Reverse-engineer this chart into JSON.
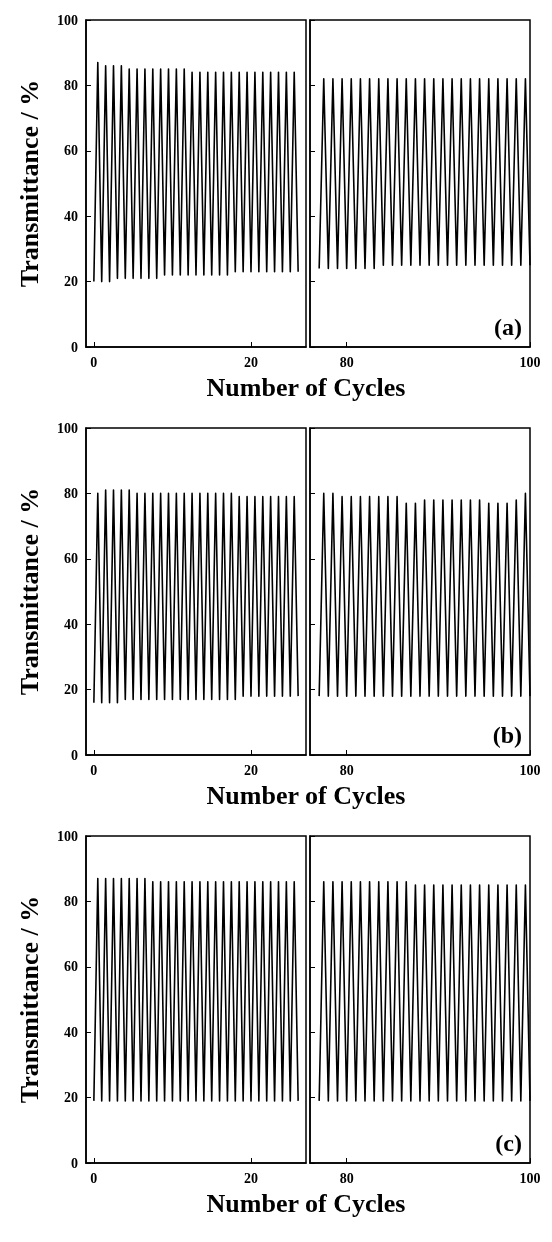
{
  "chart_data": [
    {
      "type": "line",
      "ylabel": "Transmittance / %",
      "xlabel": "Number of Cycles",
      "xlim": [
        -1,
        27
      ],
      "xticks": [
        0,
        20
      ],
      "ylim": [
        0,
        100
      ],
      "yticks": [
        0,
        20,
        40,
        60,
        80,
        100
      ],
      "grid": false,
      "marker": "none",
      "color": "#000000",
      "x": [
        0,
        0.5,
        1,
        1.5,
        2,
        2.5,
        3,
        3.5,
        4,
        4.5,
        5,
        5.5,
        6,
        6.5,
        7,
        7.5,
        8,
        8.5,
        9,
        9.5,
        10,
        10.5,
        11,
        11.5,
        12,
        12.5,
        13,
        13.5,
        14,
        14.5,
        15,
        15.5,
        16,
        16.5,
        17,
        17.5,
        18,
        18.5,
        19,
        19.5,
        20,
        20.5,
        21,
        21.5,
        22,
        22.5,
        23,
        23.5,
        24,
        24.5,
        25,
        25.5,
        26
      ],
      "values": [
        20,
        87,
        20,
        86,
        20,
        86,
        21,
        86,
        21,
        85,
        21,
        85,
        21,
        85,
        21,
        85,
        21,
        85,
        22,
        85,
        22,
        85,
        22,
        85,
        22,
        84,
        22,
        84,
        22,
        84,
        22,
        84,
        22,
        84,
        22,
        84,
        23,
        84,
        23,
        84,
        23,
        84,
        23,
        84,
        23,
        84,
        23,
        84,
        23,
        84,
        23,
        84,
        23
      ]
    },
    {
      "type": "line",
      "annotations": [
        "(a)"
      ],
      "tick_labels": "x",
      "xlim": [
        76,
        100
      ],
      "xticks": [
        80,
        100
      ],
      "ylim": [
        0,
        100
      ],
      "yticks": [
        0,
        20,
        40,
        60,
        80,
        100
      ],
      "grid": false,
      "marker": "none",
      "color": "#000000",
      "x": [
        77,
        77.5,
        78,
        78.5,
        79,
        79.5,
        80,
        80.5,
        81,
        81.5,
        82,
        82.5,
        83,
        83.5,
        84,
        84.5,
        85,
        85.5,
        86,
        86.5,
        87,
        87.5,
        88,
        88.5,
        89,
        89.5,
        90,
        90.5,
        91,
        91.5,
        92,
        92.5,
        93,
        93.5,
        94,
        94.5,
        95,
        95.5,
        96,
        96.5,
        97,
        97.5,
        98,
        98.5,
        99,
        99.5,
        100
      ],
      "values": [
        24,
        82,
        24,
        82,
        24,
        82,
        24,
        82,
        24,
        82,
        24,
        82,
        24,
        82,
        25,
        82,
        25,
        82,
        25,
        82,
        25,
        82,
        25,
        82,
        25,
        82,
        25,
        82,
        25,
        82,
        25,
        82,
        25,
        82,
        25,
        82,
        25,
        82,
        25,
        82,
        25,
        82,
        25,
        82,
        25,
        82,
        25
      ]
    },
    {
      "type": "line",
      "ylabel": "Transmittance / %",
      "xlabel": "Number of Cycles",
      "xlim": [
        -1,
        27
      ],
      "xticks": [
        0,
        20
      ],
      "ylim": [
        0,
        100
      ],
      "yticks": [
        0,
        20,
        40,
        60,
        80,
        100
      ],
      "grid": false,
      "marker": "none",
      "color": "#000000",
      "x": [
        0,
        0.5,
        1,
        1.5,
        2,
        2.5,
        3,
        3.5,
        4,
        4.5,
        5,
        5.5,
        6,
        6.5,
        7,
        7.5,
        8,
        8.5,
        9,
        9.5,
        10,
        10.5,
        11,
        11.5,
        12,
        12.5,
        13,
        13.5,
        14,
        14.5,
        15,
        15.5,
        16,
        16.5,
        17,
        17.5,
        18,
        18.5,
        19,
        19.5,
        20,
        20.5,
        21,
        21.5,
        22,
        22.5,
        23,
        23.5,
        24,
        24.5,
        25,
        25.5,
        26
      ],
      "values": [
        16,
        80,
        16,
        81,
        16,
        81,
        16,
        81,
        17,
        81,
        17,
        80,
        17,
        80,
        17,
        80,
        17,
        80,
        17,
        80,
        17,
        80,
        17,
        80,
        17,
        80,
        17,
        80,
        17,
        80,
        17,
        80,
        17,
        80,
        17,
        80,
        17,
        79,
        18,
        79,
        18,
        79,
        18,
        79,
        18,
        79,
        18,
        79,
        18,
        79,
        18,
        79,
        18
      ]
    },
    {
      "type": "line",
      "annotations": [
        "(b)"
      ],
      "tick_labels": "x",
      "xlim": [
        76,
        100
      ],
      "xticks": [
        80,
        100
      ],
      "ylim": [
        0,
        100
      ],
      "yticks": [
        0,
        20,
        40,
        60,
        80,
        100
      ],
      "grid": false,
      "marker": "none",
      "color": "#000000",
      "x": [
        77,
        77.5,
        78,
        78.5,
        79,
        79.5,
        80,
        80.5,
        81,
        81.5,
        82,
        82.5,
        83,
        83.5,
        84,
        84.5,
        85,
        85.5,
        86,
        86.5,
        87,
        87.5,
        88,
        88.5,
        89,
        89.5,
        90,
        90.5,
        91,
        91.5,
        92,
        92.5,
        93,
        93.5,
        94,
        94.5,
        95,
        95.5,
        96,
        96.5,
        97,
        97.5,
        98,
        98.5,
        99,
        99.5,
        100
      ],
      "values": [
        18,
        80,
        18,
        80,
        18,
        79,
        18,
        79,
        18,
        79,
        18,
        79,
        18,
        79,
        18,
        79,
        18,
        79,
        18,
        77,
        18,
        77,
        18,
        78,
        18,
        78,
        18,
        78,
        18,
        78,
        18,
        78,
        18,
        78,
        18,
        78,
        18,
        77,
        18,
        77,
        18,
        77,
        18,
        78,
        18,
        80,
        18
      ]
    },
    {
      "type": "line",
      "ylabel": "Transmittance / %",
      "xlabel": "Number of Cycles",
      "xlim": [
        -1,
        27
      ],
      "xticks": [
        0,
        20
      ],
      "ylim": [
        0,
        100
      ],
      "yticks": [
        0,
        20,
        40,
        60,
        80,
        100
      ],
      "grid": false,
      "marker": "none",
      "color": "#000000",
      "x": [
        0,
        0.5,
        1,
        1.5,
        2,
        2.5,
        3,
        3.5,
        4,
        4.5,
        5,
        5.5,
        6,
        6.5,
        7,
        7.5,
        8,
        8.5,
        9,
        9.5,
        10,
        10.5,
        11,
        11.5,
        12,
        12.5,
        13,
        13.5,
        14,
        14.5,
        15,
        15.5,
        16,
        16.5,
        17,
        17.5,
        18,
        18.5,
        19,
        19.5,
        20,
        20.5,
        21,
        21.5,
        22,
        22.5,
        23,
        23.5,
        24,
        24.5,
        25,
        25.5,
        26
      ],
      "values": [
        19,
        87,
        19,
        87,
        19,
        87,
        19,
        87,
        19,
        87,
        19,
        87,
        19,
        87,
        19,
        86,
        19,
        86,
        19,
        86,
        19,
        86,
        19,
        86,
        19,
        86,
        19,
        86,
        19,
        86,
        19,
        86,
        19,
        86,
        19,
        86,
        19,
        86,
        19,
        86,
        19,
        86,
        19,
        86,
        19,
        86,
        19,
        86,
        19,
        86,
        19,
        86,
        19
      ]
    },
    {
      "type": "line",
      "annotations": [
        "(c)"
      ],
      "tick_labels": "x",
      "xlim": [
        76,
        100
      ],
      "xticks": [
        80,
        100
      ],
      "ylim": [
        0,
        100
      ],
      "yticks": [
        0,
        20,
        40,
        60,
        80,
        100
      ],
      "grid": false,
      "marker": "none",
      "color": "#000000",
      "x": [
        77,
        77.5,
        78,
        78.5,
        79,
        79.5,
        80,
        80.5,
        81,
        81.5,
        82,
        82.5,
        83,
        83.5,
        84,
        84.5,
        85,
        85.5,
        86,
        86.5,
        87,
        87.5,
        88,
        88.5,
        89,
        89.5,
        90,
        90.5,
        91,
        91.5,
        92,
        92.5,
        93,
        93.5,
        94,
        94.5,
        95,
        95.5,
        96,
        96.5,
        97,
        97.5,
        98,
        98.5,
        99,
        99.5,
        100
      ],
      "values": [
        19,
        86,
        19,
        86,
        19,
        86,
        19,
        86,
        19,
        86,
        19,
        86,
        19,
        86,
        19,
        86,
        19,
        86,
        19,
        86,
        19,
        85,
        19,
        85,
        19,
        85,
        19,
        85,
        19,
        85,
        19,
        85,
        19,
        85,
        19,
        85,
        19,
        85,
        19,
        85,
        19,
        85,
        19,
        85,
        19,
        85,
        19
      ]
    }
  ]
}
